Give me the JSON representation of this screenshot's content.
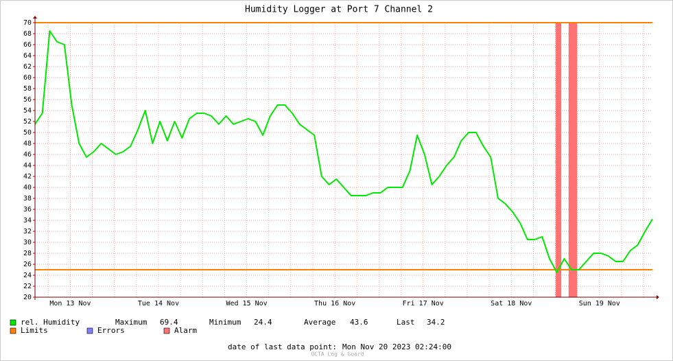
{
  "chart_data": {
    "type": "line",
    "title": "Humidity Logger at Port 7 Channel 2",
    "x": [
      0,
      2,
      4,
      6,
      8,
      10,
      12,
      14,
      16,
      18,
      20,
      22,
      24,
      26,
      28,
      30,
      32,
      34,
      36,
      38,
      40,
      42,
      44,
      46,
      48,
      50,
      52,
      54,
      56,
      58,
      60,
      62,
      64,
      66,
      68,
      70,
      72,
      74,
      76,
      78,
      80,
      82,
      84,
      86,
      88,
      90,
      92,
      94,
      96,
      98,
      100,
      102,
      104,
      106,
      108,
      110,
      112,
      114,
      116,
      118,
      120,
      122,
      124,
      126,
      128,
      130,
      132,
      134,
      136,
      138,
      140,
      142,
      144,
      146,
      148,
      150,
      152,
      154,
      156,
      158,
      160,
      162,
      164,
      166,
      168
    ],
    "series": [
      {
        "name": "rel. Humidity",
        "color": "#00e800",
        "values": [
          51.5,
          53.5,
          68.5,
          66.5,
          66,
          55,
          48,
          45.5,
          46.5,
          48,
          47,
          46,
          46.5,
          47.5,
          50.5,
          54,
          48,
          52,
          48.5,
          52,
          49,
          52.5,
          53.5,
          53.5,
          53,
          51.5,
          53,
          51.5,
          52,
          52.5,
          52,
          49.5,
          53,
          55,
          55,
          53.5,
          51.5,
          50.5,
          49.5,
          42,
          40.5,
          41.5,
          40,
          38.5,
          38.5,
          38.5,
          39,
          39,
          40,
          40,
          40,
          43,
          49.5,
          46,
          40.5,
          42,
          44,
          45.5,
          48.5,
          50,
          50,
          47.5,
          45.5,
          38,
          37,
          35.5,
          33.5,
          30.5,
          30.5,
          31,
          27,
          24.5,
          27,
          25,
          25,
          26.5,
          28,
          28,
          27.5,
          26.5,
          26.5,
          28.5,
          29.5,
          32,
          34.2
        ]
      }
    ],
    "xlim": [
      0,
      168
    ],
    "xticks": [
      {
        "value": 9.6,
        "label": "Mon 13 Nov"
      },
      {
        "value": 33.6,
        "label": "Tue 14 Nov"
      },
      {
        "value": 57.6,
        "label": "Wed 15 Nov"
      },
      {
        "value": 81.6,
        "label": "Thu 16 Nov"
      },
      {
        "value": 105.6,
        "label": "Fri 17 Nov"
      },
      {
        "value": 129.6,
        "label": "Sat 18 Nov"
      },
      {
        "value": 153.6,
        "label": "Sun 19 Nov"
      }
    ],
    "xgrid": [
      3.6,
      15.6,
      21.6,
      27.6,
      39.6,
      45.6,
      51.6,
      63.6,
      69.6,
      75.6,
      87.6,
      93.6,
      99.6,
      111.6,
      117.6,
      123.6,
      135.6,
      141.6,
      147.6,
      159.6,
      165.6
    ],
    "ylim": [
      20,
      70
    ],
    "yticks": [
      20,
      22,
      24,
      26,
      28,
      30,
      32,
      34,
      36,
      38,
      40,
      42,
      44,
      46,
      48,
      50,
      52,
      54,
      56,
      58,
      60,
      62,
      64,
      66,
      68,
      70
    ],
    "grid": true,
    "limits": {
      "name": "Limits",
      "color": "#ff7f00",
      "values": [
        25,
        70
      ]
    },
    "errors": {
      "name": "Errors",
      "color": "#7f7fff"
    },
    "alarms": {
      "name": "Alarm",
      "color": "#ff7272",
      "ranges": [
        [
          141.7,
          143.2
        ],
        [
          145.2,
          147.5
        ]
      ]
    },
    "stats": [
      {
        "label": "Maximum",
        "value": 69.4
      },
      {
        "label": "Minimum",
        "value": 24.4
      },
      {
        "label": "Average",
        "value": 43.6
      },
      {
        "label": "Last",
        "value": 34.2
      }
    ],
    "footer": {
      "label": "date of last data point:",
      "value": "Mon Nov 20 2023 02:24:00"
    },
    "watermark": "OCTA Log & Guard"
  }
}
